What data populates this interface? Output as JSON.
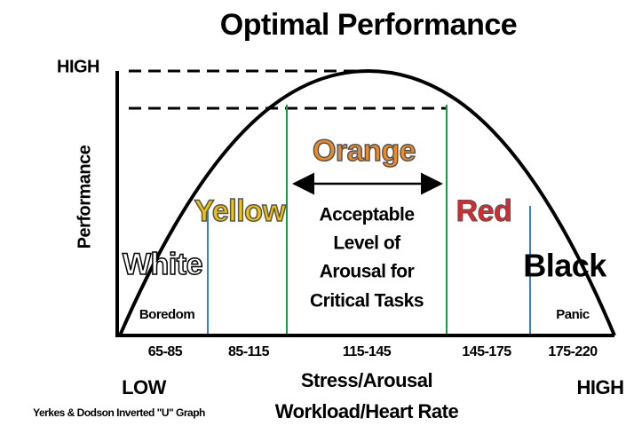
{
  "title": "Optimal Performance",
  "y_axis": {
    "high": "HIGH",
    "label": "Performance"
  },
  "x_axis": {
    "low": "LOW",
    "high": "HIGH",
    "label_lines": [
      "Stress/Arousal",
      "Workload/Heart Rate"
    ]
  },
  "zones": [
    {
      "name": "White",
      "note": "Boredom",
      "range": "65-85"
    },
    {
      "name": "Yellow",
      "range": "85-115"
    },
    {
      "name": "Orange",
      "note_lines": [
        "Acceptable",
        "Level of",
        "Arousal for",
        "Critical Tasks"
      ],
      "range": "115-145"
    },
    {
      "name": "Red",
      "range": "145-175"
    },
    {
      "name": "Black",
      "note": "Panic",
      "range": "175-220"
    }
  ],
  "caption": "Yerkes & Dodson Inverted \"U\" Graph"
}
